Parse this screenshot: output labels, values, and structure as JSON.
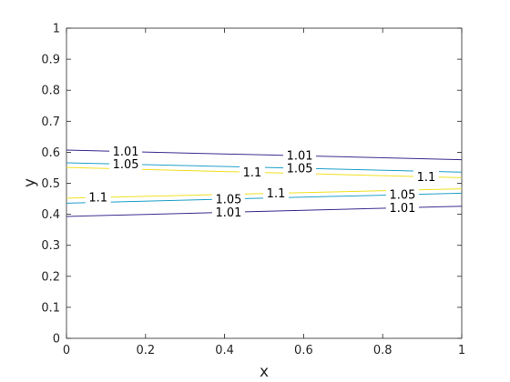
{
  "chart_data": {
    "type": "contour",
    "title": "",
    "xlabel": "x",
    "ylabel": "y",
    "xlim": [
      0,
      1
    ],
    "ylim": [
      0,
      1
    ],
    "xticks": [
      0,
      0.2,
      0.4,
      0.6,
      0.8,
      1
    ],
    "xtick_labels": [
      "0",
      "0.2",
      "0.4",
      "0.6",
      "0.8",
      "1"
    ],
    "yticks": [
      0,
      0.1,
      0.2,
      0.3,
      0.4,
      0.5,
      0.6,
      0.7,
      0.8,
      0.9,
      1
    ],
    "ytick_labels": [
      "0",
      "0.1",
      "0.2",
      "0.3",
      "0.4",
      "0.5",
      "0.6",
      "0.7",
      "0.8",
      "0.9",
      "1"
    ],
    "grid": false,
    "contours": [
      {
        "level": "1.01",
        "color": "#3d2a8f",
        "x": [
          0,
          1
        ],
        "y": [
          0.607,
          0.576
        ],
        "label_x": [
          0.15,
          0.59
        ]
      },
      {
        "level": "1.05",
        "color": "#1fa0c8",
        "x": [
          0,
          1
        ],
        "y": [
          0.566,
          0.536
        ],
        "label_x": [
          0.15,
          0.59
        ]
      },
      {
        "level": "1.1",
        "color": "#f0e020",
        "x": [
          0,
          1
        ],
        "y": [
          0.551,
          0.518
        ],
        "label_x": [
          0.47,
          0.91
        ]
      },
      {
        "level": "1.1",
        "color": "#f0e020",
        "x": [
          0,
          1
        ],
        "y": [
          0.452,
          0.482
        ],
        "label_x": [
          0.08,
          0.53
        ]
      },
      {
        "level": "1.05",
        "color": "#1fa0c8",
        "x": [
          0,
          1
        ],
        "y": [
          0.436,
          0.468
        ],
        "label_x": [
          0.41,
          0.85
        ]
      },
      {
        "level": "1.01",
        "color": "#3d2a8f",
        "x": [
          0,
          1
        ],
        "y": [
          0.393,
          0.426
        ],
        "label_x": [
          0.41,
          0.85
        ]
      }
    ]
  }
}
